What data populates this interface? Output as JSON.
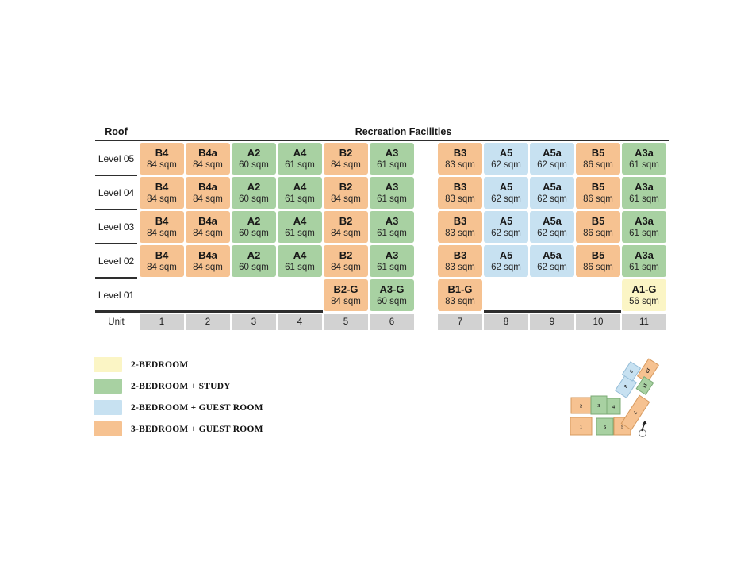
{
  "header": {
    "roof": "Roof",
    "recreation": "Recreation Facilities"
  },
  "unit_label": "Unit",
  "colors": {
    "2br": "#FBF5C5",
    "2br_study": "#A8D1A2",
    "2br_guest": "#C7E1F1",
    "3br_guest": "#F6C291",
    "unit_cell": "#D2D2D2",
    "line": "#2e2e2e"
  },
  "grid": {
    "columns": [
      "1",
      "2",
      "3",
      "4",
      "5",
      "6",
      "7",
      "8",
      "9",
      "10",
      "11"
    ],
    "levels": [
      {
        "label": "Level 05",
        "cells": [
          {
            "name": "B4",
            "area": "84 sqm",
            "type": "3br_guest"
          },
          {
            "name": "B4a",
            "area": "84 sqm",
            "type": "3br_guest"
          },
          {
            "name": "A2",
            "area": "60 sqm",
            "type": "2br_study"
          },
          {
            "name": "A4",
            "area": "61 sqm",
            "type": "2br_study"
          },
          {
            "name": "B2",
            "area": "84 sqm",
            "type": "3br_guest"
          },
          {
            "name": "A3",
            "area": "61 sqm",
            "type": "2br_study"
          },
          {
            "name": "B3",
            "area": "83 sqm",
            "type": "3br_guest"
          },
          {
            "name": "A5",
            "area": "62 sqm",
            "type": "2br_guest"
          },
          {
            "name": "A5a",
            "area": "62 sqm",
            "type": "2br_guest"
          },
          {
            "name": "B5",
            "area": "86 sqm",
            "type": "3br_guest"
          },
          {
            "name": "A3a",
            "area": "61 sqm",
            "type": "2br_study"
          }
        ]
      },
      {
        "label": "Level 04",
        "cells": [
          {
            "name": "B4",
            "area": "84 sqm",
            "type": "3br_guest"
          },
          {
            "name": "B4a",
            "area": "84 sqm",
            "type": "3br_guest"
          },
          {
            "name": "A2",
            "area": "60 sqm",
            "type": "2br_study"
          },
          {
            "name": "A4",
            "area": "61 sqm",
            "type": "2br_study"
          },
          {
            "name": "B2",
            "area": "84 sqm",
            "type": "3br_guest"
          },
          {
            "name": "A3",
            "area": "61 sqm",
            "type": "2br_study"
          },
          {
            "name": "B3",
            "area": "83 sqm",
            "type": "3br_guest"
          },
          {
            "name": "A5",
            "area": "62 sqm",
            "type": "2br_guest"
          },
          {
            "name": "A5a",
            "area": "62 sqm",
            "type": "2br_guest"
          },
          {
            "name": "B5",
            "area": "86 sqm",
            "type": "3br_guest"
          },
          {
            "name": "A3a",
            "area": "61 sqm",
            "type": "2br_study"
          }
        ]
      },
      {
        "label": "Level 03",
        "cells": [
          {
            "name": "B4",
            "area": "84 sqm",
            "type": "3br_guest"
          },
          {
            "name": "B4a",
            "area": "84 sqm",
            "type": "3br_guest"
          },
          {
            "name": "A2",
            "area": "60 sqm",
            "type": "2br_study"
          },
          {
            "name": "A4",
            "area": "61 sqm",
            "type": "2br_study"
          },
          {
            "name": "B2",
            "area": "84 sqm",
            "type": "3br_guest"
          },
          {
            "name": "A3",
            "area": "61 sqm",
            "type": "2br_study"
          },
          {
            "name": "B3",
            "area": "83 sqm",
            "type": "3br_guest"
          },
          {
            "name": "A5",
            "area": "62 sqm",
            "type": "2br_guest"
          },
          {
            "name": "A5a",
            "area": "62 sqm",
            "type": "2br_guest"
          },
          {
            "name": "B5",
            "area": "86 sqm",
            "type": "3br_guest"
          },
          {
            "name": "A3a",
            "area": "61 sqm",
            "type": "2br_study"
          }
        ]
      },
      {
        "label": "Level 02",
        "cells": [
          {
            "name": "B4",
            "area": "84 sqm",
            "type": "3br_guest"
          },
          {
            "name": "B4a",
            "area": "84 sqm",
            "type": "3br_guest"
          },
          {
            "name": "A2",
            "area": "60 sqm",
            "type": "2br_study"
          },
          {
            "name": "A4",
            "area": "61 sqm",
            "type": "2br_study"
          },
          {
            "name": "B2",
            "area": "84 sqm",
            "type": "3br_guest"
          },
          {
            "name": "A3",
            "area": "61 sqm",
            "type": "2br_study"
          },
          {
            "name": "B3",
            "area": "83 sqm",
            "type": "3br_guest"
          },
          {
            "name": "A5",
            "area": "62 sqm",
            "type": "2br_guest"
          },
          {
            "name": "A5a",
            "area": "62 sqm",
            "type": "2br_guest"
          },
          {
            "name": "B5",
            "area": "86 sqm",
            "type": "3br_guest"
          },
          {
            "name": "A3a",
            "area": "61 sqm",
            "type": "2br_study"
          }
        ]
      },
      {
        "label": "Level 01",
        "cells": [
          null,
          null,
          null,
          null,
          {
            "name": "B2-G",
            "area": "84 sqm",
            "type": "3br_guest"
          },
          {
            "name": "A3-G",
            "area": "60 sqm",
            "type": "2br_study"
          },
          {
            "name": "B1-G",
            "area": "83 sqm",
            "type": "3br_guest"
          },
          null,
          null,
          null,
          {
            "name": "A1-G",
            "area": "56 sqm",
            "type": "2br"
          }
        ]
      }
    ]
  },
  "legend": {
    "items": [
      {
        "label": "2-BEDROOM",
        "type": "2br"
      },
      {
        "label": "2-BEDROOM + STUDY",
        "type": "2br_study"
      },
      {
        "label": "2-BEDROOM + GUEST ROOM",
        "type": "2br_guest"
      },
      {
        "label": "3-BEDROOM + GUEST ROOM",
        "type": "3br_guest"
      }
    ]
  },
  "site_plan": {
    "blocks": [
      {
        "num": "1",
        "type": "3br_guest"
      },
      {
        "num": "2",
        "type": "3br_guest"
      },
      {
        "num": "3",
        "type": "2br_study"
      },
      {
        "num": "4",
        "type": "2br_study"
      },
      {
        "num": "5",
        "type": "3br_guest"
      },
      {
        "num": "6",
        "type": "2br_study"
      },
      {
        "num": "7",
        "type": "3br_guest"
      },
      {
        "num": "8",
        "type": "2br_guest"
      },
      {
        "num": "9",
        "type": "2br_guest"
      },
      {
        "num": "10",
        "type": "3br_guest"
      },
      {
        "num": "11",
        "type": "2br_study"
      }
    ],
    "compass": "north-arrow"
  }
}
